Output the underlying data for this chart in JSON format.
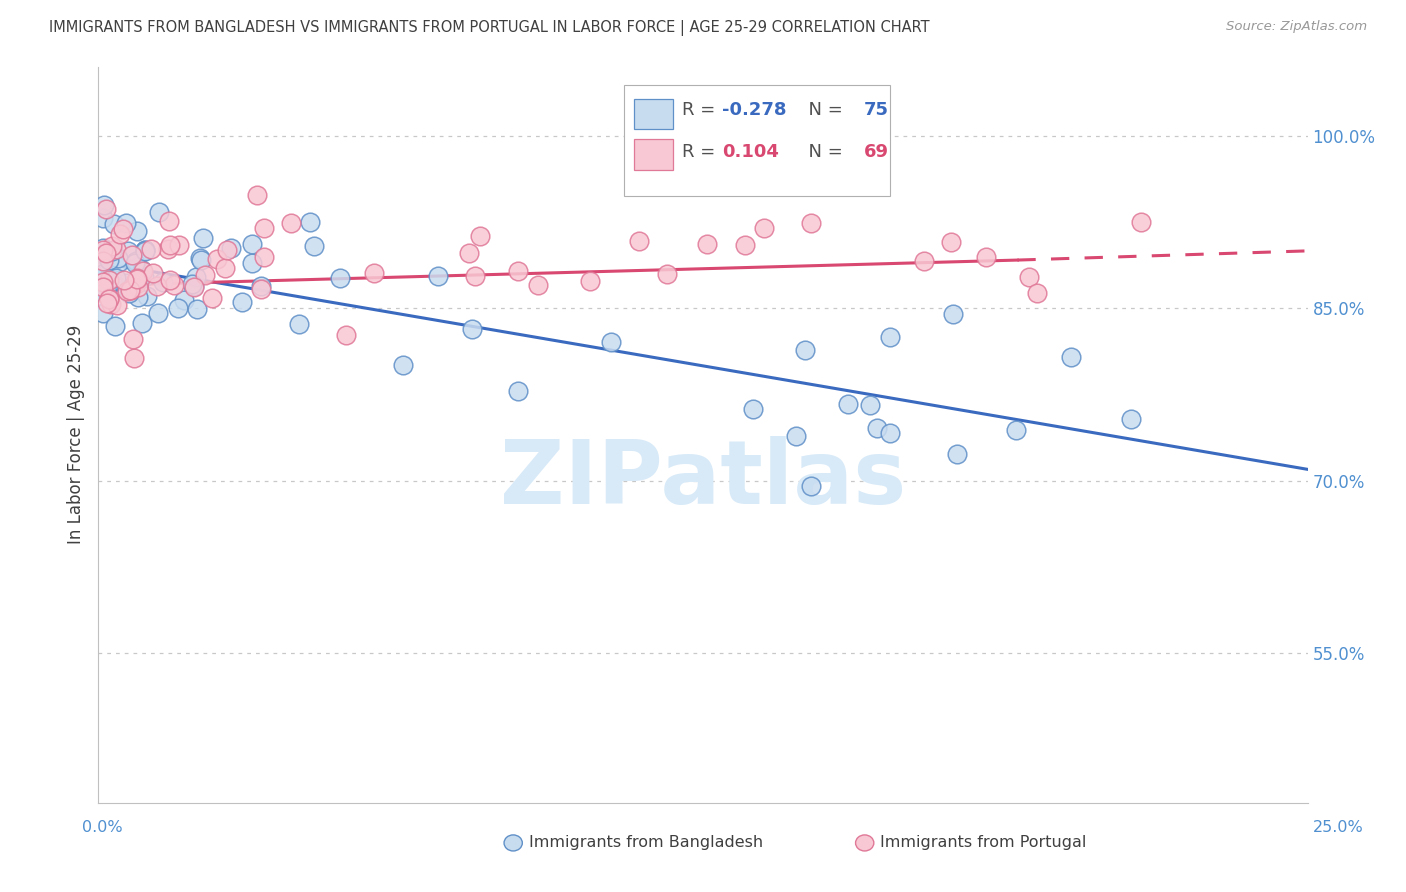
{
  "title": "IMMIGRANTS FROM BANGLADESH VS IMMIGRANTS FROM PORTUGAL IN LABOR FORCE | AGE 25-29 CORRELATION CHART",
  "source": "Source: ZipAtlas.com",
  "ylabel": "In Labor Force | Age 25-29",
  "y_ticks": [
    0.55,
    0.7,
    0.85,
    1.0
  ],
  "y_tick_labels": [
    "55.0%",
    "70.0%",
    "85.0%",
    "100.0%"
  ],
  "x_lim": [
    0.0,
    0.25
  ],
  "y_lim": [
    0.42,
    1.06
  ],
  "legend_blue_r": "-0.278",
  "legend_blue_n": "75",
  "legend_pink_r": "0.104",
  "legend_pink_n": "69",
  "blue_fill": "#c8dcf0",
  "blue_edge": "#6090c8",
  "blue_line": "#3a6abf",
  "pink_fill": "#f8c8d4",
  "pink_edge": "#e07898",
  "pink_line": "#d84870",
  "bg_color": "#ffffff",
  "grid_color": "#c8c8c8",
  "title_color": "#404040",
  "axis_label_color": "#5090d0",
  "watermark_color": "#d8eaf8",
  "legend_box_edge": "#b0b0b0",
  "bottom_label_color": "#404040"
}
